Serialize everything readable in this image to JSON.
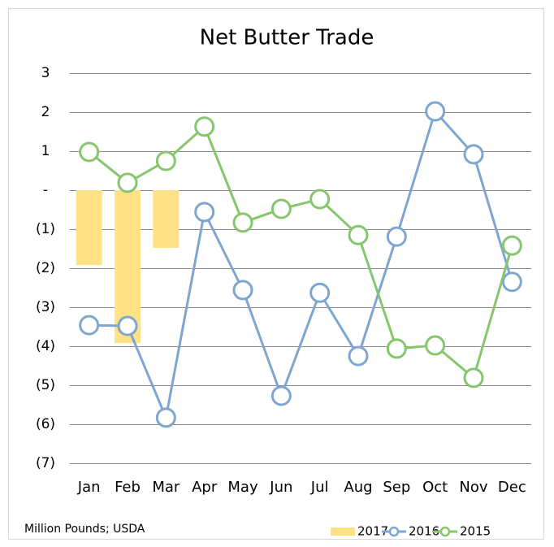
{
  "chart_data": {
    "type": "combo",
    "title": "Net Butter Trade",
    "note": "Million Pounds; USDA",
    "categories": [
      "Jan",
      "Feb",
      "Mar",
      "Apr",
      "May",
      "Jun",
      "Jul",
      "Aug",
      "Sep",
      "Oct",
      "Nov",
      "Dec"
    ],
    "series": [
      {
        "name": "2017",
        "type": "bar",
        "color": "#ffe285",
        "values": [
          -1.92,
          -3.92,
          -1.48,
          null,
          null,
          null,
          null,
          null,
          null,
          null,
          null,
          null
        ]
      },
      {
        "name": "2016",
        "type": "line",
        "color": "#7ea6cf",
        "values": [
          -3.46,
          -3.48,
          -5.83,
          -0.56,
          -2.56,
          -5.27,
          -2.63,
          -4.25,
          -1.19,
          2.02,
          0.92,
          -2.35
        ]
      },
      {
        "name": "2015",
        "type": "line",
        "color": "#86c66c",
        "values": [
          0.98,
          0.19,
          0.75,
          1.63,
          -0.83,
          -0.48,
          -0.23,
          -1.15,
          -4.06,
          -3.98,
          -4.81,
          -1.42
        ]
      }
    ],
    "ylim": [
      -7,
      3
    ],
    "yticks": [
      {
        "value": -7,
        "label": "(7)"
      },
      {
        "value": -6,
        "label": "(6)"
      },
      {
        "value": -5,
        "label": "(5)"
      },
      {
        "value": -4,
        "label": "(4)"
      },
      {
        "value": -3,
        "label": "(3)"
      },
      {
        "value": -2,
        "label": "(2)"
      },
      {
        "value": -1,
        "label": "(1)"
      },
      {
        "value": 0,
        "label": "-"
      },
      1,
      2,
      3
    ],
    "grid": true
  }
}
